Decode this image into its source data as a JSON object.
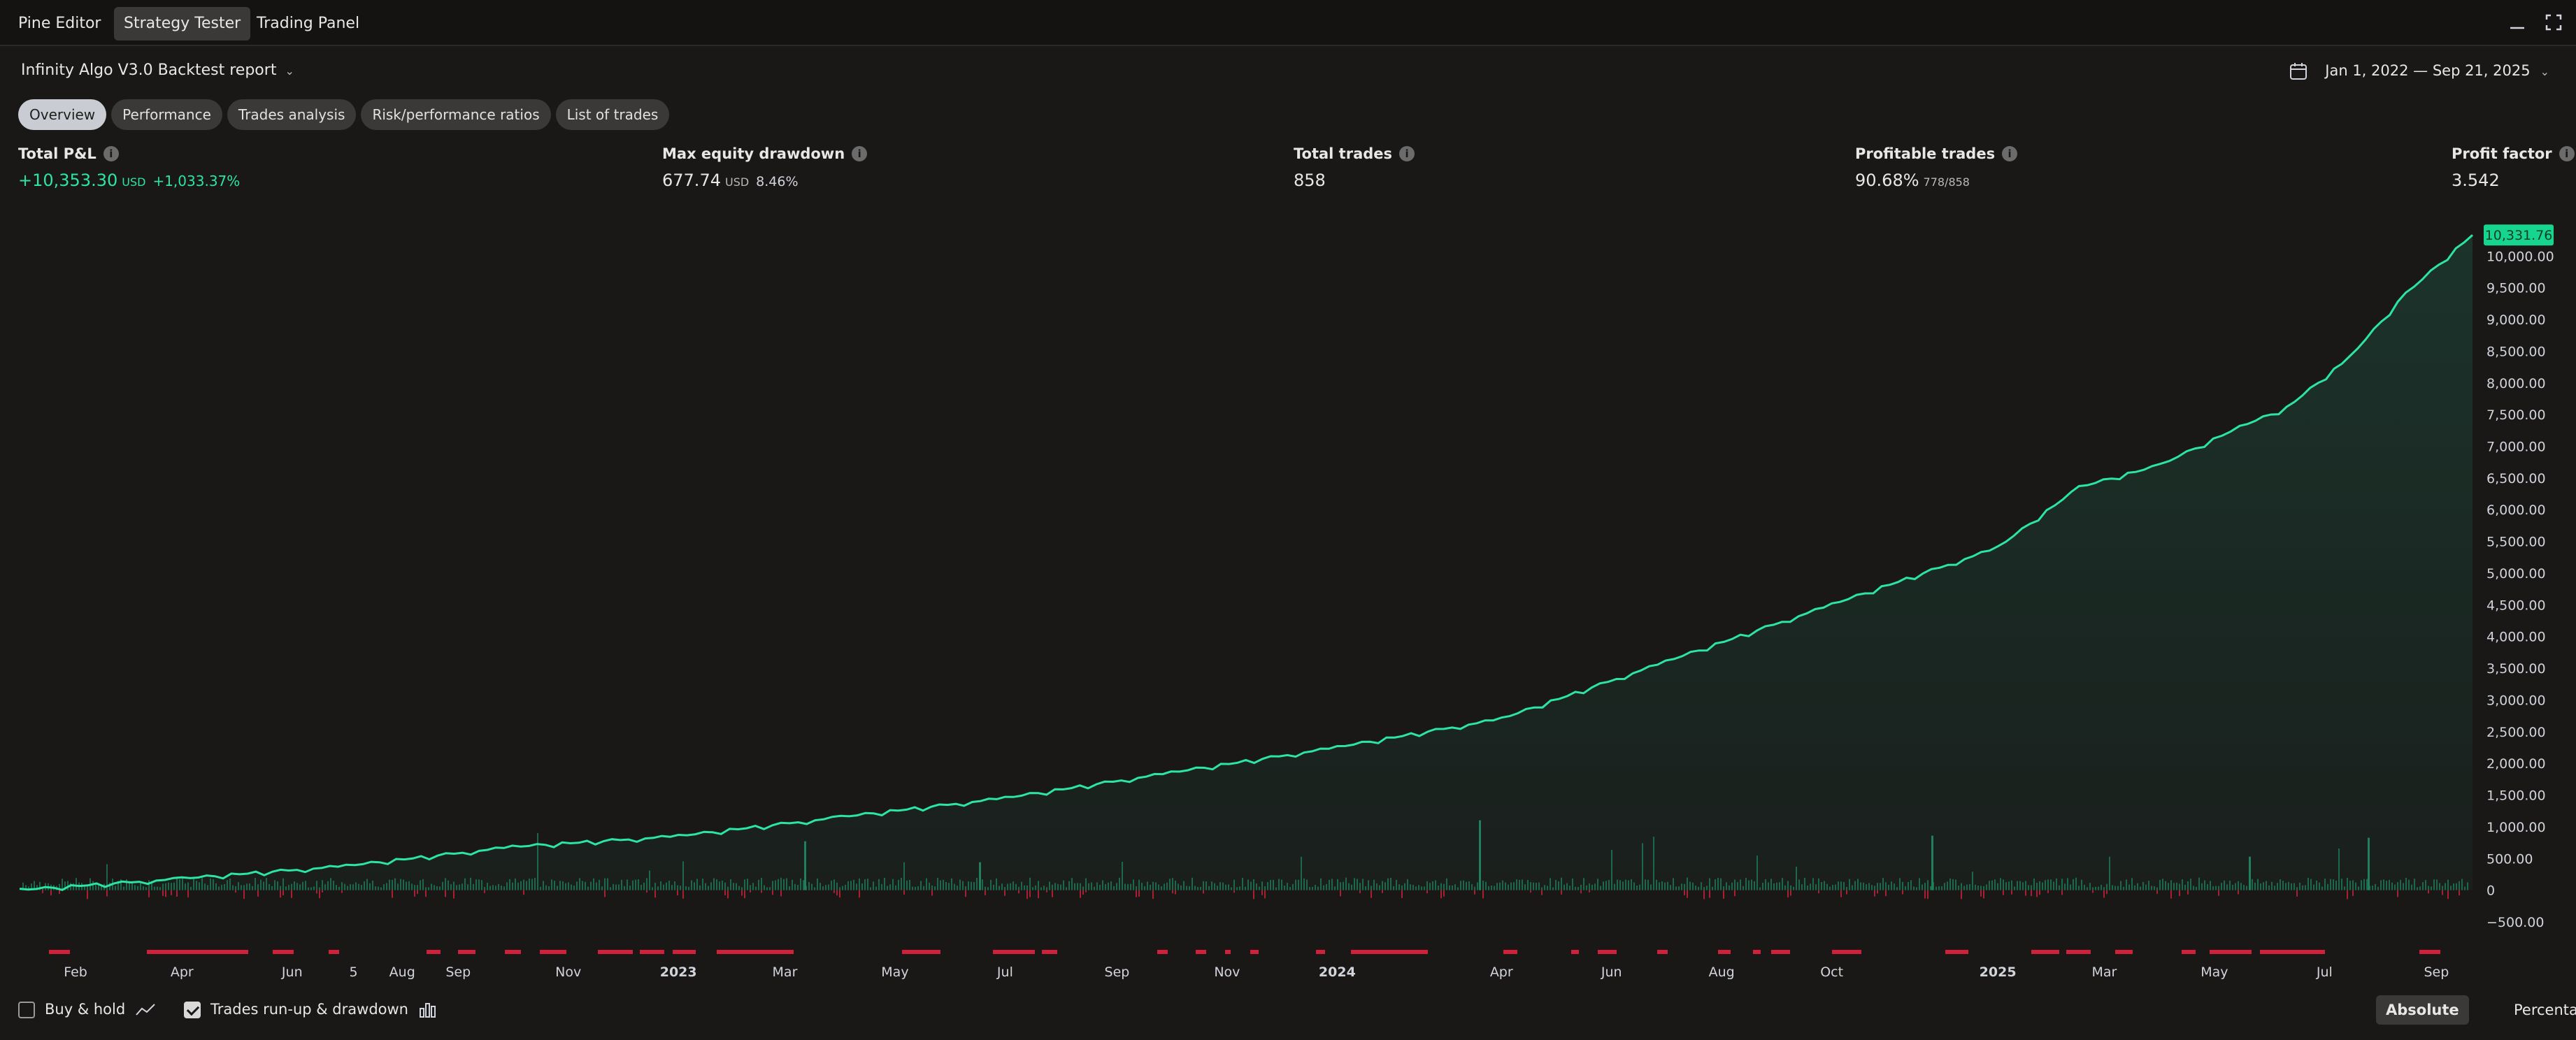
{
  "topbar": {
    "tabs": [
      {
        "label": "Pine Editor",
        "active": false
      },
      {
        "label": "Strategy Tester",
        "active": true
      },
      {
        "label": "Trading Panel",
        "active": false
      }
    ],
    "icons": [
      "minimize-icon",
      "maximize-icon"
    ]
  },
  "report": {
    "title": "Infinity Algo V3.0 Backtest report",
    "date_range": "Jan 1, 2022 — Sep 21, 2025"
  },
  "subtabs": [
    {
      "label": "Overview",
      "active": true
    },
    {
      "label": "Performance",
      "active": false
    },
    {
      "label": "Trades analysis",
      "active": false
    },
    {
      "label": "Risk/performance ratios",
      "active": false
    },
    {
      "label": "List of trades",
      "active": false
    }
  ],
  "metrics": {
    "total_pnl": {
      "label": "Total P&L",
      "value": "+10,353.30",
      "unit": "USD",
      "percent": "+1,033.37%"
    },
    "max_drawdown": {
      "label": "Max equity drawdown",
      "value": "677.74",
      "unit": "USD",
      "percent": "8.46%"
    },
    "total_trades": {
      "label": "Total trades",
      "value": "858"
    },
    "profitable_trades": {
      "label": "Profitable trades",
      "value": "90.68%",
      "detail": "778/858"
    },
    "profit_factor": {
      "label": "Profit factor",
      "value": "3.542"
    }
  },
  "chart_data": {
    "type": "line",
    "series": [
      {
        "name": "",
        "x": [
          "2022-01-01",
          "2022-04-01",
          "2022-07-01",
          "2022-10-01",
          "2023-01-01",
          "2023-04-01",
          "2023-07-01",
          "2023-10-01",
          "2024-01-01",
          "2024-04-01",
          "2024-07-01",
          "2024-10-01",
          "2025-01-01",
          "2025-02-15",
          "2025-04-01",
          "2025-05-15",
          "2025-06-10",
          "2025-07-15",
          "2025-08-15",
          "2025-09-21"
        ],
        "values": [
          0,
          180,
          380,
          680,
          850,
          1150,
          1450,
          1850,
          2250,
          2700,
          3600,
          4500,
          5400,
          6350,
          6700,
          7300,
          7600,
          8400,
          9400,
          10331.76
        ]
      }
    ],
    "last_value_label": "10,331.76",
    "yticks": [
      "10,000.00",
      "9,500.00",
      "9,000.00",
      "8,500.00",
      "8,000.00",
      "7,500.00",
      "7,000.00",
      "6,500.00",
      "6,000.00",
      "5,500.00",
      "5,000.00",
      "4,500.00",
      "4,000.00",
      "3,500.00",
      "3,000.00",
      "2,500.00",
      "2,000.00",
      "1,500.00",
      "1,000.00",
      "500.00",
      "0",
      "−500.00"
    ],
    "ylim": [
      -500,
      10400
    ],
    "xticks": [
      {
        "label": "Feb",
        "date": "2022-02-01"
      },
      {
        "label": "Apr",
        "date": "2022-04-01"
      },
      {
        "label": "Jun",
        "date": "2022-06-01"
      },
      {
        "label": "5",
        "date": "2022-07-05"
      },
      {
        "label": "Aug",
        "date": "2022-08-01"
      },
      {
        "label": "Sep",
        "date": "2022-09-01"
      },
      {
        "label": "Nov",
        "date": "2022-11-01"
      },
      {
        "label": "2023",
        "date": "2023-01-01",
        "bold": true
      },
      {
        "label": "Mar",
        "date": "2023-03-01"
      },
      {
        "label": "May",
        "date": "2023-05-01"
      },
      {
        "label": "Jul",
        "date": "2023-07-01"
      },
      {
        "label": "Sep",
        "date": "2023-09-01"
      },
      {
        "label": "Nov",
        "date": "2023-11-01"
      },
      {
        "label": "2024",
        "date": "2024-01-01",
        "bold": true
      },
      {
        "label": "Apr",
        "date": "2024-04-01"
      },
      {
        "label": "Jun",
        "date": "2024-06-01"
      },
      {
        "label": "Aug",
        "date": "2024-08-01"
      },
      {
        "label": "Oct",
        "date": "2024-10-01"
      },
      {
        "label": "2025",
        "date": "2025-01-01",
        "bold": true
      },
      {
        "label": "Mar",
        "date": "2025-03-01"
      },
      {
        "label": "May",
        "date": "2025-05-01"
      },
      {
        "label": "Jul",
        "date": "2025-07-01"
      },
      {
        "label": "Sep",
        "date": "2025-09-01"
      }
    ],
    "colors": {
      "line": "#2ce4a4",
      "label_bg": "#16d68f",
      "runup": "#1f7d5c",
      "drawdown": "#d1213a"
    },
    "grid": false
  },
  "bottom": {
    "buy_hold": {
      "label": "Buy & hold",
      "checked": false
    },
    "runup_drawdown": {
      "label": "Trades run-up & drawdown",
      "checked": true
    },
    "absolute_label": "Absolute",
    "percentage_label": "Percentage"
  }
}
